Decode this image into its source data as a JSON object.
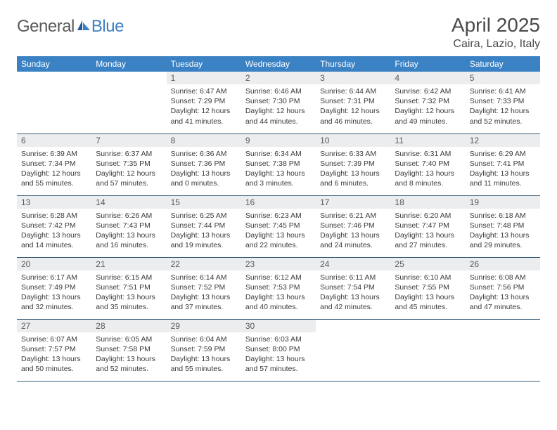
{
  "brand": {
    "part1": "General",
    "part2": "Blue"
  },
  "title": "April 2025",
  "location": "Caira, Lazio, Italy",
  "colors": {
    "header_bg": "#3b82c4",
    "header_fg": "#ffffff",
    "daynum_bg": "#ecedef",
    "row_border": "#3b5f7a",
    "text": "#333333",
    "logo_gray": "#5a5a5a",
    "logo_blue": "#3b7fc4",
    "page_bg": "#ffffff"
  },
  "typography": {
    "title_fontsize": 28,
    "location_fontsize": 16,
    "weekday_fontsize": 12,
    "daynum_fontsize": 12,
    "body_fontsize": 10.5
  },
  "weekdays": [
    "Sunday",
    "Monday",
    "Tuesday",
    "Wednesday",
    "Thursday",
    "Friday",
    "Saturday"
  ],
  "calendar": {
    "type": "table",
    "first_weekday": "Sunday",
    "leading_blanks": 2,
    "days": [
      {
        "n": 1,
        "sunrise": "6:47 AM",
        "sunset": "7:29 PM",
        "daylight": "12 hours and 41 minutes."
      },
      {
        "n": 2,
        "sunrise": "6:46 AM",
        "sunset": "7:30 PM",
        "daylight": "12 hours and 44 minutes."
      },
      {
        "n": 3,
        "sunrise": "6:44 AM",
        "sunset": "7:31 PM",
        "daylight": "12 hours and 46 minutes."
      },
      {
        "n": 4,
        "sunrise": "6:42 AM",
        "sunset": "7:32 PM",
        "daylight": "12 hours and 49 minutes."
      },
      {
        "n": 5,
        "sunrise": "6:41 AM",
        "sunset": "7:33 PM",
        "daylight": "12 hours and 52 minutes."
      },
      {
        "n": 6,
        "sunrise": "6:39 AM",
        "sunset": "7:34 PM",
        "daylight": "12 hours and 55 minutes."
      },
      {
        "n": 7,
        "sunrise": "6:37 AM",
        "sunset": "7:35 PM",
        "daylight": "12 hours and 57 minutes."
      },
      {
        "n": 8,
        "sunrise": "6:36 AM",
        "sunset": "7:36 PM",
        "daylight": "13 hours and 0 minutes."
      },
      {
        "n": 9,
        "sunrise": "6:34 AM",
        "sunset": "7:38 PM",
        "daylight": "13 hours and 3 minutes."
      },
      {
        "n": 10,
        "sunrise": "6:33 AM",
        "sunset": "7:39 PM",
        "daylight": "13 hours and 6 minutes."
      },
      {
        "n": 11,
        "sunrise": "6:31 AM",
        "sunset": "7:40 PM",
        "daylight": "13 hours and 8 minutes."
      },
      {
        "n": 12,
        "sunrise": "6:29 AM",
        "sunset": "7:41 PM",
        "daylight": "13 hours and 11 minutes."
      },
      {
        "n": 13,
        "sunrise": "6:28 AM",
        "sunset": "7:42 PM",
        "daylight": "13 hours and 14 minutes."
      },
      {
        "n": 14,
        "sunrise": "6:26 AM",
        "sunset": "7:43 PM",
        "daylight": "13 hours and 16 minutes."
      },
      {
        "n": 15,
        "sunrise": "6:25 AM",
        "sunset": "7:44 PM",
        "daylight": "13 hours and 19 minutes."
      },
      {
        "n": 16,
        "sunrise": "6:23 AM",
        "sunset": "7:45 PM",
        "daylight": "13 hours and 22 minutes."
      },
      {
        "n": 17,
        "sunrise": "6:21 AM",
        "sunset": "7:46 PM",
        "daylight": "13 hours and 24 minutes."
      },
      {
        "n": 18,
        "sunrise": "6:20 AM",
        "sunset": "7:47 PM",
        "daylight": "13 hours and 27 minutes."
      },
      {
        "n": 19,
        "sunrise": "6:18 AM",
        "sunset": "7:48 PM",
        "daylight": "13 hours and 29 minutes."
      },
      {
        "n": 20,
        "sunrise": "6:17 AM",
        "sunset": "7:49 PM",
        "daylight": "13 hours and 32 minutes."
      },
      {
        "n": 21,
        "sunrise": "6:15 AM",
        "sunset": "7:51 PM",
        "daylight": "13 hours and 35 minutes."
      },
      {
        "n": 22,
        "sunrise": "6:14 AM",
        "sunset": "7:52 PM",
        "daylight": "13 hours and 37 minutes."
      },
      {
        "n": 23,
        "sunrise": "6:12 AM",
        "sunset": "7:53 PM",
        "daylight": "13 hours and 40 minutes."
      },
      {
        "n": 24,
        "sunrise": "6:11 AM",
        "sunset": "7:54 PM",
        "daylight": "13 hours and 42 minutes."
      },
      {
        "n": 25,
        "sunrise": "6:10 AM",
        "sunset": "7:55 PM",
        "daylight": "13 hours and 45 minutes."
      },
      {
        "n": 26,
        "sunrise": "6:08 AM",
        "sunset": "7:56 PM",
        "daylight": "13 hours and 47 minutes."
      },
      {
        "n": 27,
        "sunrise": "6:07 AM",
        "sunset": "7:57 PM",
        "daylight": "13 hours and 50 minutes."
      },
      {
        "n": 28,
        "sunrise": "6:05 AM",
        "sunset": "7:58 PM",
        "daylight": "13 hours and 52 minutes."
      },
      {
        "n": 29,
        "sunrise": "6:04 AM",
        "sunset": "7:59 PM",
        "daylight": "13 hours and 55 minutes."
      },
      {
        "n": 30,
        "sunrise": "6:03 AM",
        "sunset": "8:00 PM",
        "daylight": "13 hours and 57 minutes."
      }
    ]
  },
  "labels": {
    "sunrise_prefix": "Sunrise: ",
    "sunset_prefix": "Sunset: ",
    "daylight_prefix": "Daylight: "
  }
}
